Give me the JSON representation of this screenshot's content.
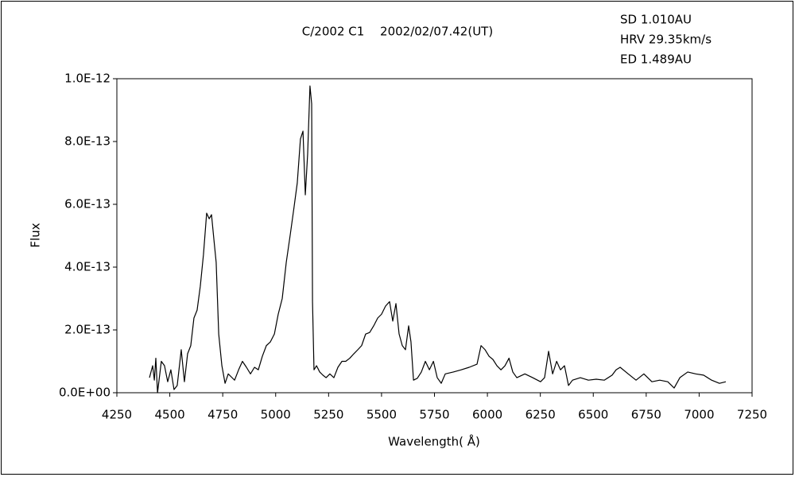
{
  "chart_data": {
    "type": "line",
    "title": "C/2002 C1　 2002/02/07.42(UT)",
    "annotations": [
      "SD 1.010AU",
      "HRV 29.35km/s",
      "ED 1.489AU"
    ],
    "x_label": "Wavelength( Å)",
    "y_label": "Flux",
    "xlim": [
      4250,
      7250
    ],
    "xticks": [
      4250,
      4500,
      4750,
      5000,
      5250,
      5500,
      5750,
      6000,
      6250,
      6500,
      6750,
      7000,
      7250
    ],
    "ylim": [
      0,
      1e-12
    ],
    "yticks": [
      {
        "value": 0,
        "label": "0.0E+00"
      },
      {
        "value": 2e-13,
        "label": "2.0E-13"
      },
      {
        "value": 4e-13,
        "label": "4.0E-13"
      },
      {
        "value": 6e-13,
        "label": "6.0E-13"
      },
      {
        "value": 8e-13,
        "label": "8.0E-13"
      },
      {
        "value": 1e-12,
        "label": "1.0E-12"
      }
    ],
    "grid": false,
    "series": [
      {
        "color": "#000000",
        "x": [
          4404,
          4419,
          4427,
          4434,
          4442,
          4460,
          4475,
          4490,
          4505,
          4520,
          4535,
          4554,
          4569,
          4584,
          4599,
          4614,
          4629,
          4644,
          4659,
          4674,
          4686,
          4697,
          4708,
          4719,
          4731,
          4746,
          4761,
          4776,
          4791,
          4806,
          4825,
          4843,
          4862,
          4881,
          4900,
          4918,
          4937,
          4956,
          4975,
          4994,
          5012,
          5031,
          5050,
          5069,
          5087,
          5102,
          5117,
          5129,
          5140,
          5151,
          5162,
          5170,
          5174,
          5181,
          5193,
          5208,
          5223,
          5238,
          5256,
          5275,
          5294,
          5313,
          5331,
          5350,
          5369,
          5388,
          5406,
          5425,
          5444,
          5463,
          5482,
          5500,
          5519,
          5538,
          5553,
          5568,
          5583,
          5598,
          5613,
          5628,
          5639,
          5651,
          5669,
          5688,
          5707,
          5726,
          5745,
          5763,
          5782,
          5801,
          5839,
          5876,
          5914,
          5951,
          5970,
          5989,
          6008,
          6026,
          6045,
          6064,
          6083,
          6102,
          6120,
          6139,
          6177,
          6214,
          6251,
          6270,
          6289,
          6308,
          6327,
          6345,
          6364,
          6383,
          6402,
          6439,
          6477,
          6514,
          6552,
          6589,
          6608,
          6627,
          6665,
          6702,
          6739,
          6777,
          6814,
          6852,
          6882,
          6909,
          6946,
          6984,
          7021,
          7059,
          7096,
          7126
        ],
        "values": [
          4.8e-14,
          8.6e-14,
          4e-14,
          1.1e-13,
          0,
          1e-13,
          8.6e-14,
          3.5e-14,
          7.3e-14,
          1e-14,
          2.3e-14,
          1.37e-13,
          3.5e-14,
          1.24e-13,
          1.5e-13,
          2.38e-13,
          2.63e-13,
          3.39e-13,
          4.4e-13,
          5.72e-13,
          5.54e-13,
          5.67e-13,
          4.9e-13,
          4.15e-13,
          1.87e-13,
          8.6e-14,
          3e-14,
          6e-14,
          5e-14,
          4e-14,
          7.3e-14,
          1e-13,
          8.1e-14,
          6e-14,
          8.1e-14,
          7.3e-14,
          1.16e-13,
          1.5e-13,
          1.62e-13,
          1.87e-13,
          2.5e-13,
          3e-13,
          4.15e-13,
          5.04e-13,
          5.92e-13,
          6.68e-13,
          8.08e-13,
          8.33e-13,
          6.3e-13,
          7.6e-13,
          9.77e-13,
          9.2e-13,
          2.9e-13,
          7.3e-14,
          8.6e-14,
          6.6e-14,
          5.6e-14,
          4.8e-14,
          6e-14,
          4.8e-14,
          8.1e-14,
          1e-13,
          1e-13,
          1.1e-13,
          1.24e-13,
          1.37e-13,
          1.5e-13,
          1.87e-13,
          1.92e-13,
          2.13e-13,
          2.38e-13,
          2.5e-13,
          2.76e-13,
          2.9e-13,
          2.28e-13,
          2.84e-13,
          1.87e-13,
          1.5e-13,
          1.37e-13,
          2.13e-13,
          1.62e-13,
          4e-14,
          4.6e-14,
          6.6e-14,
          1e-13,
          7.3e-14,
          1e-13,
          4.8e-14,
          3e-14,
          6e-14,
          6.6e-14,
          7.3e-14,
          8.1e-14,
          9.1e-14,
          1.5e-13,
          1.37e-13,
          1.16e-13,
          1.06e-13,
          8.6e-14,
          7.3e-14,
          8.6e-14,
          1.1e-13,
          6.6e-14,
          4.8e-14,
          6e-14,
          4.8e-14,
          3.5e-14,
          4.8e-14,
          1.32e-13,
          6e-14,
          1e-13,
          7.3e-14,
          8.6e-14,
          2.3e-14,
          4e-14,
          4.8e-14,
          4e-14,
          4.3e-14,
          4e-14,
          5.6e-14,
          7.3e-14,
          8.1e-14,
          6e-14,
          4e-14,
          6e-14,
          3.5e-14,
          4e-14,
          3.5e-14,
          1.5e-14,
          4.8e-14,
          6.6e-14,
          6e-14,
          5.6e-14,
          4e-14,
          3e-14,
          3.5e-14
        ]
      }
    ]
  }
}
